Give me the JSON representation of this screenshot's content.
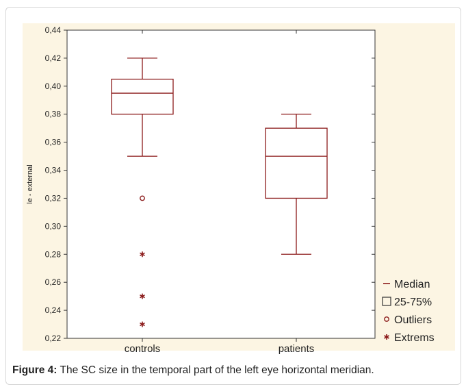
{
  "caption": {
    "label": "Figure 4:",
    "text": " The SC size in the temporal part of the left eye horizontal meridian."
  },
  "chart_data": {
    "type": "box",
    "title": "",
    "xlabel": "",
    "ylabel": "le - external",
    "ylim": [
      0.22,
      0.44
    ],
    "yticks": [
      "0,22",
      "0,24",
      "0,26",
      "0,28",
      "0,30",
      "0,32",
      "0,34",
      "0,36",
      "0,38",
      "0,40",
      "0,42",
      "0,44"
    ],
    "ytick_values": [
      0.22,
      0.24,
      0.26,
      0.28,
      0.3,
      0.32,
      0.34,
      0.36,
      0.38,
      0.4,
      0.42,
      0.44
    ],
    "categories": [
      "controls",
      "patients"
    ],
    "boxes": [
      {
        "category": "controls",
        "whisker_low": 0.35,
        "q1": 0.38,
        "median": 0.395,
        "q3": 0.405,
        "whisker_high": 0.42,
        "outliers": [
          0.32
        ],
        "extremes": [
          0.28,
          0.25,
          0.23
        ]
      },
      {
        "category": "patients",
        "whisker_low": 0.28,
        "q1": 0.32,
        "median": 0.35,
        "q3": 0.37,
        "whisker_high": 0.38,
        "outliers": [],
        "extremes": []
      }
    ],
    "legend": {
      "position": "bottom-right",
      "items": [
        {
          "symbol": "line",
          "label": "Median"
        },
        {
          "symbol": "box",
          "label": "25-75%"
        },
        {
          "symbol": "circle",
          "label": "Outliers"
        },
        {
          "symbol": "star",
          "label": "Extrems"
        }
      ]
    },
    "grid": false,
    "colors": {
      "box": "#8b1a1a",
      "axis": "#333333",
      "panel": "#fcf5e3"
    }
  }
}
